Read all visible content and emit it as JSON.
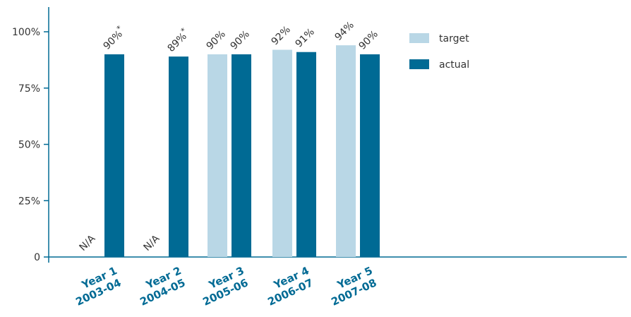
{
  "chart_data": {
    "type": "bar",
    "categories": [
      [
        "Year 1",
        "2003-04"
      ],
      [
        "Year 2",
        "2004-05"
      ],
      [
        "Year 3",
        "2005-06"
      ],
      [
        "Year 4",
        "2006-07"
      ],
      [
        "Year 5",
        "2007-08"
      ]
    ],
    "series": [
      {
        "name": "target",
        "color": "#b9d7e6",
        "values": [
          null,
          null,
          90,
          92,
          94
        ],
        "labels": [
          "N/A",
          "N/A",
          "90%",
          "92%",
          "94%"
        ]
      },
      {
        "name": "actual",
        "color": "#006a94",
        "values": [
          90,
          89,
          90,
          91,
          90
        ],
        "labels": [
          "90%*",
          "89%*",
          "90%",
          "91%",
          "90%"
        ]
      }
    ],
    "ylim": [
      0,
      100
    ],
    "yticks": [
      {
        "value": 0,
        "label": "0"
      },
      {
        "value": 25,
        "label": "25%"
      },
      {
        "value": 50,
        "label": "50%"
      },
      {
        "value": 75,
        "label": "75%"
      },
      {
        "value": 100,
        "label": "100%"
      }
    ],
    "title": "",
    "xlabel": "",
    "ylabel": "",
    "grid": false,
    "legend": "top-right",
    "axis_color": "#006a94",
    "category_label_color": "#006a94"
  }
}
